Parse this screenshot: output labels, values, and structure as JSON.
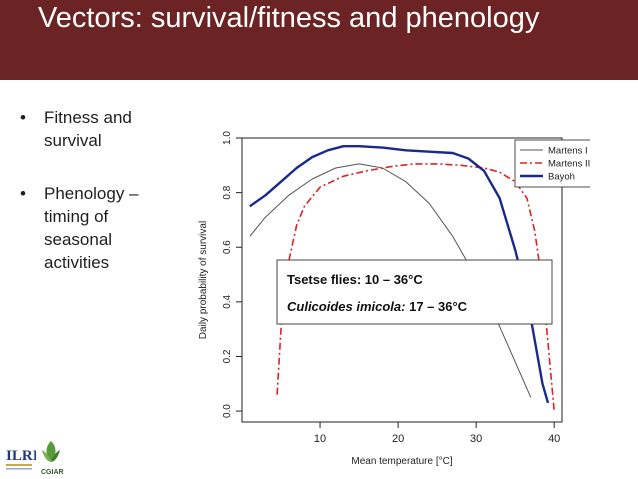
{
  "slide": {
    "title": "Vectors: survival/fitness and phenology",
    "bullets": [
      "Fitness and survival",
      "Phenology – timing of seasonal activities"
    ],
    "colors": {
      "title_bar": "#6b2323",
      "title_text": "#ffffff"
    }
  },
  "logos": {
    "left": "ILRI",
    "right": "CGIAR"
  },
  "annotation": {
    "line1": "Tsetse flies:  10 – 36°C",
    "line2_italic": "Culicoides imicola:",
    "line2_rest": " 17 – 36°C"
  },
  "chart_data": {
    "type": "line",
    "xlabel": "Mean temperature [°C]",
    "ylabel": "Daily probability of survival",
    "xlim": [
      0,
      41
    ],
    "ylim": [
      -0.04,
      1.0
    ],
    "xticks": [
      10,
      20,
      30,
      40
    ],
    "yticks": [
      0.0,
      0.2,
      0.4,
      0.6,
      0.8,
      1.0
    ],
    "legend_position": "top-right",
    "series": [
      {
        "name": "Martens I",
        "color": "#555555",
        "style": "solid",
        "x": [
          1,
          3,
          6,
          9,
          12,
          15,
          18,
          21,
          24,
          27,
          30,
          33,
          35,
          37
        ],
        "y": [
          0.64,
          0.71,
          0.79,
          0.85,
          0.89,
          0.905,
          0.89,
          0.84,
          0.76,
          0.64,
          0.49,
          0.31,
          0.18,
          0.05
        ]
      },
      {
        "name": "Martens II",
        "color": "#dd2222",
        "style": "dashdot",
        "x": [
          4.5,
          5,
          6,
          7,
          8,
          10,
          13,
          16,
          19,
          22,
          25,
          28,
          31,
          33,
          35,
          36.5,
          37.5,
          38.5,
          39.2,
          40
        ],
        "y": [
          0.06,
          0.3,
          0.55,
          0.68,
          0.75,
          0.82,
          0.86,
          0.88,
          0.895,
          0.905,
          0.905,
          0.9,
          0.89,
          0.875,
          0.84,
          0.78,
          0.66,
          0.46,
          0.25,
          0.0
        ]
      },
      {
        "name": "Bayoh",
        "color": "#1a2a8c",
        "style": "solid",
        "x": [
          1,
          3,
          5,
          7,
          9,
          11,
          13,
          15,
          18,
          21,
          24,
          27,
          29,
          31,
          33,
          35,
          36.5,
          37.5,
          38.5,
          39.2
        ],
        "y": [
          0.75,
          0.79,
          0.84,
          0.89,
          0.93,
          0.955,
          0.97,
          0.97,
          0.965,
          0.955,
          0.95,
          0.945,
          0.925,
          0.88,
          0.78,
          0.59,
          0.42,
          0.26,
          0.1,
          0.03
        ]
      }
    ]
  }
}
